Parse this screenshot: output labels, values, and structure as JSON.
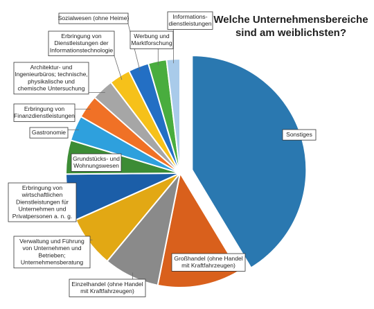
{
  "chart_data": {
    "type": "pie",
    "title_lines": [
      "Welche Unternehmensbereiche",
      "sind am weiblichsten?"
    ],
    "slices": [
      {
        "name": "Sonstiges",
        "label_lines": [
          "Sonstiges"
        ],
        "value": 41.5,
        "color": "#2a78b0",
        "exploded": true
      },
      {
        "name": "Großhandel (ohne Handel mit Kraftfahrzeugen)",
        "label_lines": [
          "Großhandel (ohne Handel",
          "mit Kraftfahrzeugen)"
        ],
        "value": 11.8,
        "color": "#d9601c",
        "exploded": false
      },
      {
        "name": "Einzelhandel (ohne Handel mit Kraftfahrzeugen)",
        "label_lines": [
          "Einzelhandel (ohne Handel",
          "mit Kraftfahrzeugen)"
        ],
        "value": 7.9,
        "color": "#8a8a8a",
        "exploded": false
      },
      {
        "name": "Verwaltung und Führung von Unternehmen und Betrieben; Unternehmensberatung",
        "label_lines": [
          "Verwaltung und Führung",
          "von Unternehmen und",
          "Betrieben;",
          "Unternehmensberatung"
        ],
        "value": 7.3,
        "color": "#e2a814",
        "exploded": false
      },
      {
        "name": "Erbringung von wirtschaftlichen Dienstleistungen für Unternehmen und Privatpersonen a. n. g.",
        "label_lines": [
          "Erbringung von",
          "wirtschaftlichen",
          "Dienstleistungen für",
          "Unternehmen und",
          "Privatpersonen a. n. g."
        ],
        "value": 6.6,
        "color": "#1b5ea8",
        "exploded": false
      },
      {
        "name": "Grundstücks- und Wohnungswesen",
        "label_lines": [
          "Grundstücks- und",
          "Wohnungswesen"
        ],
        "value": 4.8,
        "color": "#3c8c35",
        "exploded": false
      },
      {
        "name": "Gastronomie",
        "label_lines": [
          "Gastronomie"
        ],
        "value": 3.6,
        "color": "#2ea0dd",
        "exploded": false
      },
      {
        "name": "Erbringung von Finanzdienstleistungen",
        "label_lines": [
          "Erbringung von",
          "Finanzdienstleistungen"
        ],
        "value": 3.3,
        "color": "#f07126",
        "exploded": false
      },
      {
        "name": "Architektur- und Ingenieurbüros; technische, physikalische und chemische Untersuchung",
        "label_lines": [
          "Architektur- und",
          "Ingenieurbüros; technische,",
          "physikalische und",
          "chemische Untersuchung"
        ],
        "value": 3.1,
        "color": "#a6a6a6",
        "exploded": false
      },
      {
        "name": "Erbringung von Dienstleistungen der Informationstechnologie",
        "label_lines": [
          "Erbringung von",
          "Dienstleistungen der",
          "Informationstechnologie"
        ],
        "value": 3.0,
        "color": "#f6c11a",
        "exploded": false
      },
      {
        "name": "Sozialwesen (ohne Heime)",
        "label_lines": [
          "Sozialwesen (ohne Heime)"
        ],
        "value": 2.9,
        "color": "#236fc4",
        "exploded": false
      },
      {
        "name": "Werbung und Marktforschung",
        "label_lines": [
          "Werbung und",
          "Marktforschung"
        ],
        "value": 2.6,
        "color": "#49ad3e",
        "exploded": false
      },
      {
        "name": "Informationsdienstleistungen",
        "label_lines": [
          "Informations-",
          "dienstleistungen"
        ],
        "value": 1.9,
        "color": "#a9cbea",
        "exploded": false
      }
    ]
  }
}
